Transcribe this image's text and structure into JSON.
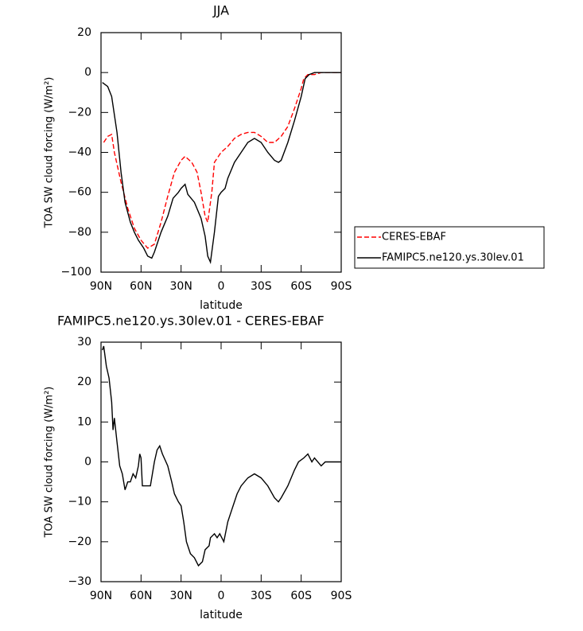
{
  "chart_data": [
    {
      "type": "line",
      "title": "JJA",
      "xlabel": "latitude",
      "ylabel": "TOA SW cloud forcing (W/m²)",
      "xlim": [
        90,
        -90
      ],
      "ylim": [
        -100,
        20
      ],
      "xticks": [
        {
          "value": 90,
          "label": "90N"
        },
        {
          "value": 60,
          "label": "60N"
        },
        {
          "value": 30,
          "label": "30N"
        },
        0,
        {
          "value": -30,
          "label": "30S"
        },
        {
          "value": -60,
          "label": "60S"
        },
        {
          "value": -90,
          "label": "90S"
        }
      ],
      "yticks": [
        {
          "value": -100,
          "label": "−100"
        },
        {
          "value": -80,
          "label": "−80"
        },
        {
          "value": -60,
          "label": "−60"
        },
        {
          "value": -40,
          "label": "−40"
        },
        {
          "value": -20,
          "label": "−20"
        },
        0,
        20
      ],
      "legend": "outside-right",
      "series": [
        {
          "name": "CERES-EBAF",
          "color": "#ff0000",
          "dash": true,
          "x": [
            88,
            85,
            82,
            80,
            75,
            70,
            65,
            60,
            55,
            50,
            45,
            40,
            35,
            30,
            27,
            22,
            18,
            15,
            12,
            10,
            7,
            5,
            0,
            -5,
            -10,
            -15,
            -20,
            -25,
            -30,
            -35,
            -40,
            -45,
            -50,
            -55,
            -60,
            -62,
            -65,
            -70,
            -75,
            -80,
            -85,
            -90
          ],
          "values": [
            -35,
            -32,
            -31,
            -40,
            -55,
            -68,
            -78,
            -84,
            -88,
            -86,
            -75,
            -62,
            -50,
            -44,
            -42,
            -45,
            -50,
            -60,
            -72,
            -75,
            -60,
            -45,
            -40,
            -37,
            -33,
            -31,
            -30,
            -30,
            -32,
            -35,
            -35,
            -32,
            -27,
            -18,
            -8,
            -3,
            -1,
            -1,
            0,
            0,
            0,
            0
          ]
        },
        {
          "name": "FAMIPC5.ne120.ys.30lev.01",
          "color": "#000000",
          "dash": false,
          "x": [
            89,
            85,
            82,
            78,
            75,
            72,
            68,
            65,
            62,
            58,
            55,
            52,
            50,
            45,
            40,
            36,
            32,
            30,
            27,
            25,
            20,
            15,
            12,
            10,
            8,
            5,
            2,
            0,
            -3,
            -5,
            -10,
            -15,
            -20,
            -25,
            -30,
            -35,
            -40,
            -43,
            -45,
            -50,
            -55,
            -60,
            -63,
            -66,
            -70,
            -80,
            -90
          ],
          "values": [
            -5,
            -7,
            -12,
            -30,
            -50,
            -65,
            -75,
            -80,
            -84,
            -88,
            -92,
            -93,
            -90,
            -80,
            -72,
            -63,
            -60,
            -58,
            -56,
            -61,
            -65,
            -73,
            -82,
            -92,
            -95,
            -80,
            -62,
            -60,
            -58,
            -53,
            -45,
            -40,
            -35,
            -33,
            -35,
            -40,
            -44,
            -45,
            -44,
            -35,
            -24,
            -12,
            -3,
            -1,
            0,
            0,
            0
          ]
        }
      ]
    },
    {
      "type": "line",
      "title": "FAMIPC5.ne120.ys.30lev.01 - CERES-EBAF",
      "xlabel": "latitude",
      "ylabel": "TOA SW cloud forcing (W/m²)",
      "xlim": [
        90,
        -90
      ],
      "ylim": [
        -30,
        30
      ],
      "xticks": [
        {
          "value": 90,
          "label": "90N"
        },
        {
          "value": 60,
          "label": "60N"
        },
        {
          "value": 30,
          "label": "30N"
        },
        0,
        {
          "value": -30,
          "label": "30S"
        },
        {
          "value": -60,
          "label": "60S"
        },
        {
          "value": -90,
          "label": "90S"
        }
      ],
      "yticks": [
        {
          "value": -30,
          "label": "−30"
        },
        {
          "value": -20,
          "label": "−20"
        },
        {
          "value": -10,
          "label": "−10"
        },
        0,
        10,
        20,
        30
      ],
      "series": [
        {
          "color": "#000000",
          "dash": false,
          "x": [
            89,
            88,
            86,
            84,
            82,
            81,
            80,
            78,
            76,
            74,
            72,
            70,
            68,
            66,
            64,
            62,
            61,
            60,
            59,
            56,
            53,
            50,
            48,
            46,
            44,
            40,
            37,
            35,
            32,
            30,
            28,
            26,
            23,
            20,
            17,
            14,
            12,
            9,
            8,
            5,
            3,
            1,
            -2,
            -5,
            -8,
            -12,
            -15,
            -20,
            -25,
            -30,
            -35,
            -40,
            -43,
            -45,
            -50,
            -55,
            -58,
            -62,
            -65,
            -68,
            -70,
            -75,
            -78,
            -82,
            -90
          ],
          "values": [
            28,
            29,
            24,
            21,
            15,
            8,
            11,
            5,
            -1,
            -3,
            -7,
            -5,
            -5,
            -3,
            -4,
            -1,
            2,
            1,
            -6,
            -6,
            -6,
            0,
            3,
            4,
            2,
            -1,
            -5,
            -8,
            -10,
            -11,
            -15,
            -20,
            -23,
            -24,
            -26,
            -25,
            -22,
            -21,
            -19,
            -18,
            -19,
            -18,
            -20,
            -15,
            -12,
            -8,
            -6,
            -4,
            -3,
            -4,
            -6,
            -9,
            -10,
            -9,
            -6,
            -2,
            0,
            1,
            2,
            0,
            1,
            -1,
            0,
            0,
            0
          ]
        }
      ]
    }
  ]
}
